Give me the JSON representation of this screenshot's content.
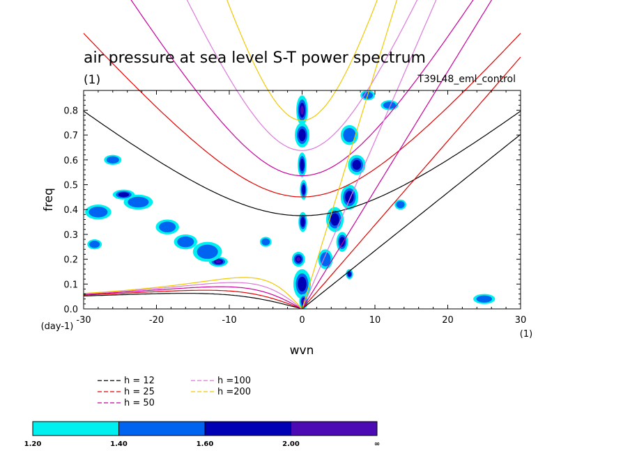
{
  "chart_data": {
    "type": "contour",
    "title": "air pressure at sea level S-T power spectrum",
    "units_label": "(1)",
    "run_label": "T39L48_eml_control",
    "xlabel": "wvn",
    "ylabel": "freq",
    "x_units": "(1)",
    "y_units": "(day-1)",
    "xlim": [
      -30,
      30
    ],
    "ylim": [
      0.0,
      0.88
    ],
    "xticks": [
      "-30",
      "-20",
      "-10",
      "0",
      "10",
      "20",
      "30"
    ],
    "xtick_values": [
      -30,
      -20,
      -10,
      0,
      10,
      20,
      30
    ],
    "yticks": [
      "0.0",
      "0.1",
      "0.2",
      "0.3",
      "0.4",
      "0.5",
      "0.6",
      "0.7",
      "0.8"
    ],
    "ytick_values": [
      0.0,
      0.1,
      0.2,
      0.3,
      0.4,
      0.5,
      0.6,
      0.7,
      0.8
    ],
    "dispersion_curves": [
      {
        "label": "h = 12",
        "h": 12,
        "color": "#000000"
      },
      {
        "label": "h = 25",
        "h": 25,
        "color": "#e00000"
      },
      {
        "label": "h = 50",
        "h": 50,
        "color": "#c8009c"
      },
      {
        "label": "h =100",
        "h": 100,
        "color": "#dc78dc"
      },
      {
        "label": "h =200",
        "h": 200,
        "color": "#f0c800"
      }
    ],
    "colorbar": {
      "levels": [
        "1.20",
        "1.40",
        "1.60",
        "2.00",
        "∞"
      ],
      "colors": [
        "#00f0f0",
        "#0064f0",
        "#0000b4",
        "#4b0ab4"
      ]
    },
    "regions": [
      {
        "x": 0,
        "y": 0.8,
        "rx": 0.8,
        "ry": 0.06,
        "level": 3
      },
      {
        "x": 0,
        "y": 0.7,
        "rx": 1.0,
        "ry": 0.05,
        "level": 2
      },
      {
        "x": 0,
        "y": 0.58,
        "rx": 0.6,
        "ry": 0.05,
        "level": 2
      },
      {
        "x": 0.2,
        "y": 0.48,
        "rx": 0.5,
        "ry": 0.04,
        "level": 2
      },
      {
        "x": 0.1,
        "y": 0.35,
        "rx": 0.6,
        "ry": 0.04,
        "level": 2
      },
      {
        "x": -0.5,
        "y": 0.2,
        "rx": 0.9,
        "ry": 0.03,
        "level": 3
      },
      {
        "x": 0,
        "y": 0.1,
        "rx": 1.2,
        "ry": 0.06,
        "level": 2
      },
      {
        "x": 0.2,
        "y": 0.03,
        "rx": 0.6,
        "ry": 0.03,
        "level": 3
      },
      {
        "x": 6.5,
        "y": 0.7,
        "rx": 1.2,
        "ry": 0.04,
        "level": 1
      },
      {
        "x": 7.5,
        "y": 0.58,
        "rx": 1.2,
        "ry": 0.04,
        "level": 2
      },
      {
        "x": 6.5,
        "y": 0.45,
        "rx": 1.2,
        "ry": 0.05,
        "level": 2
      },
      {
        "x": 4.5,
        "y": 0.36,
        "rx": 1.2,
        "ry": 0.05,
        "level": 2
      },
      {
        "x": 3.2,
        "y": 0.2,
        "rx": 1.0,
        "ry": 0.04,
        "level": 1
      },
      {
        "x": 5.5,
        "y": 0.27,
        "rx": 0.8,
        "ry": 0.04,
        "level": 2
      },
      {
        "x": 6.5,
        "y": 0.14,
        "rx": 0.5,
        "ry": 0.02,
        "level": 2
      },
      {
        "x": -11.5,
        "y": 0.19,
        "rx": 1.3,
        "ry": 0.02,
        "level": 3
      },
      {
        "x": -13.0,
        "y": 0.23,
        "rx": 2.0,
        "ry": 0.04,
        "level": 1
      },
      {
        "x": -16.0,
        "y": 0.27,
        "rx": 1.6,
        "ry": 0.03,
        "level": 1
      },
      {
        "x": -18.5,
        "y": 0.33,
        "rx": 1.6,
        "ry": 0.03,
        "level": 1
      },
      {
        "x": -22.5,
        "y": 0.43,
        "rx": 2.0,
        "ry": 0.03,
        "level": 1
      },
      {
        "x": -24.5,
        "y": 0.46,
        "rx": 1.5,
        "ry": 0.02,
        "level": 2
      },
      {
        "x": -28.0,
        "y": 0.39,
        "rx": 1.8,
        "ry": 0.03,
        "level": 1
      },
      {
        "x": -26.0,
        "y": 0.6,
        "rx": 1.2,
        "ry": 0.02,
        "level": 1
      },
      {
        "x": -28.5,
        "y": 0.26,
        "rx": 1.0,
        "ry": 0.02,
        "level": 1
      },
      {
        "x": 12.0,
        "y": 0.82,
        "rx": 1.2,
        "ry": 0.02,
        "level": 1
      },
      {
        "x": 13.5,
        "y": 0.42,
        "rx": 0.8,
        "ry": 0.02,
        "level": 1
      },
      {
        "x": 25.0,
        "y": 0.04,
        "rx": 1.5,
        "ry": 0.02,
        "level": 1
      },
      {
        "x": -5.0,
        "y": 0.27,
        "rx": 0.8,
        "ry": 0.02,
        "level": 1
      },
      {
        "x": 9.0,
        "y": 0.86,
        "rx": 1.0,
        "ry": 0.02,
        "level": 1
      }
    ]
  }
}
